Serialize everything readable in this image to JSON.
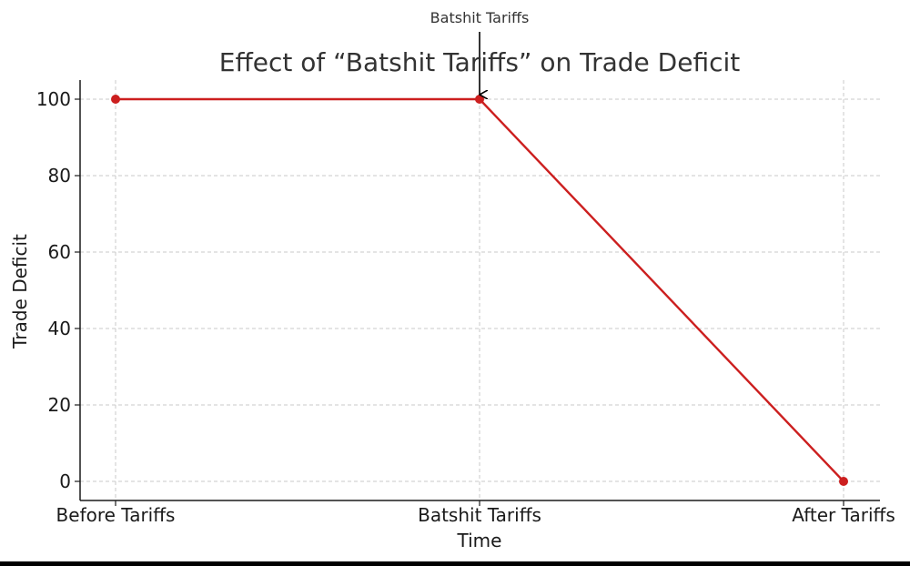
{
  "chart_data": {
    "type": "line",
    "title": "Effect of “Batshit Tariffs” on Trade Deficit",
    "xlabel": "Time",
    "ylabel": "Trade Deficit",
    "categories": [
      "Before Tariffs",
      "Batshit Tariffs",
      "After Tariffs"
    ],
    "series": [
      {
        "values": [
          100,
          100,
          0
        ],
        "color": "#cc1f1f",
        "marker": "circle"
      }
    ],
    "y_ticks": [
      0,
      20,
      40,
      60,
      80,
      100
    ],
    "ylim": [
      -5,
      105
    ],
    "grid": true,
    "annotation": {
      "text": "Batshit Tariffs",
      "category": "Batshit Tariffs",
      "value": 100
    }
  }
}
